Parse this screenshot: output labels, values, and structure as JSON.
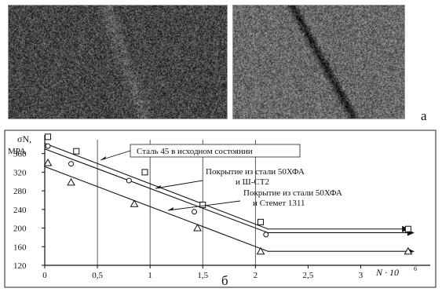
{
  "figure": {
    "panel_a_label": "а",
    "panel_b_label": "б"
  },
  "photos": [
    {
      "name": "fracture-surface-left",
      "tone": "#4a4a4a"
    },
    {
      "name": "fracture-surface-right",
      "tone": "#6e6e6e"
    }
  ],
  "chart_data": {
    "type": "scatter",
    "ylabel": "σN,",
    "yunit": "MPA",
    "xlabel": "N · 10",
    "xlabel_exp": "6",
    "xlim": [
      0,
      3.6
    ],
    "ylim": [
      120,
      410
    ],
    "x_ticks": [
      0,
      0.5,
      1,
      1.5,
      2,
      2.5,
      3
    ],
    "x_tick_labels": [
      "0",
      "0,5",
      "1",
      "1,5",
      "2",
      "2,5",
      "3"
    ],
    "y_ticks": [
      120,
      160,
      200,
      240,
      280,
      320,
      360
    ],
    "grid": "vertical lines at x = 0.5, 1.0, 1.5, 2.0",
    "series": [
      {
        "marker": "square",
        "annotation": "Сталь 45 в исходном состоянии",
        "points": [
          [
            0.03,
            396
          ],
          [
            0.3,
            365
          ],
          [
            0.95,
            320
          ],
          [
            1.5,
            250
          ],
          [
            2.05,
            213
          ],
          [
            3.45,
            198
          ]
        ],
        "line": [
          [
            0,
            382
          ],
          [
            2.12,
            198
          ],
          [
            3.4,
            198
          ]
        ]
      },
      {
        "marker": "circle",
        "annotation": "Покрытие из стали 50ХФА и Ш-СТ2",
        "annotation_line1": "Покрытие из стали 50ХФА",
        "annotation_line2": "и Ш-СТ2",
        "points": [
          [
            0.03,
            376
          ],
          [
            0.25,
            338
          ],
          [
            0.8,
            302
          ],
          [
            1.42,
            235
          ],
          [
            2.1,
            186
          ]
        ],
        "line": [
          [
            0,
            370
          ],
          [
            2.12,
            190
          ],
          [
            3.45,
            190
          ]
        ]
      },
      {
        "marker": "triangle",
        "annotation": "Покрытие из стали 50ХФА и Стемет 1311",
        "annotation_line1": "Покрытие из стали 50ХФА",
        "annotation_line2": "и Стемет 1311",
        "points": [
          [
            0.03,
            340
          ],
          [
            0.25,
            298
          ],
          [
            0.85,
            252
          ],
          [
            1.45,
            200
          ],
          [
            2.05,
            150
          ],
          [
            3.45,
            150
          ]
        ],
        "line": [
          [
            0,
            332
          ],
          [
            2.12,
            150
          ],
          [
            3.45,
            150
          ]
        ]
      }
    ]
  }
}
